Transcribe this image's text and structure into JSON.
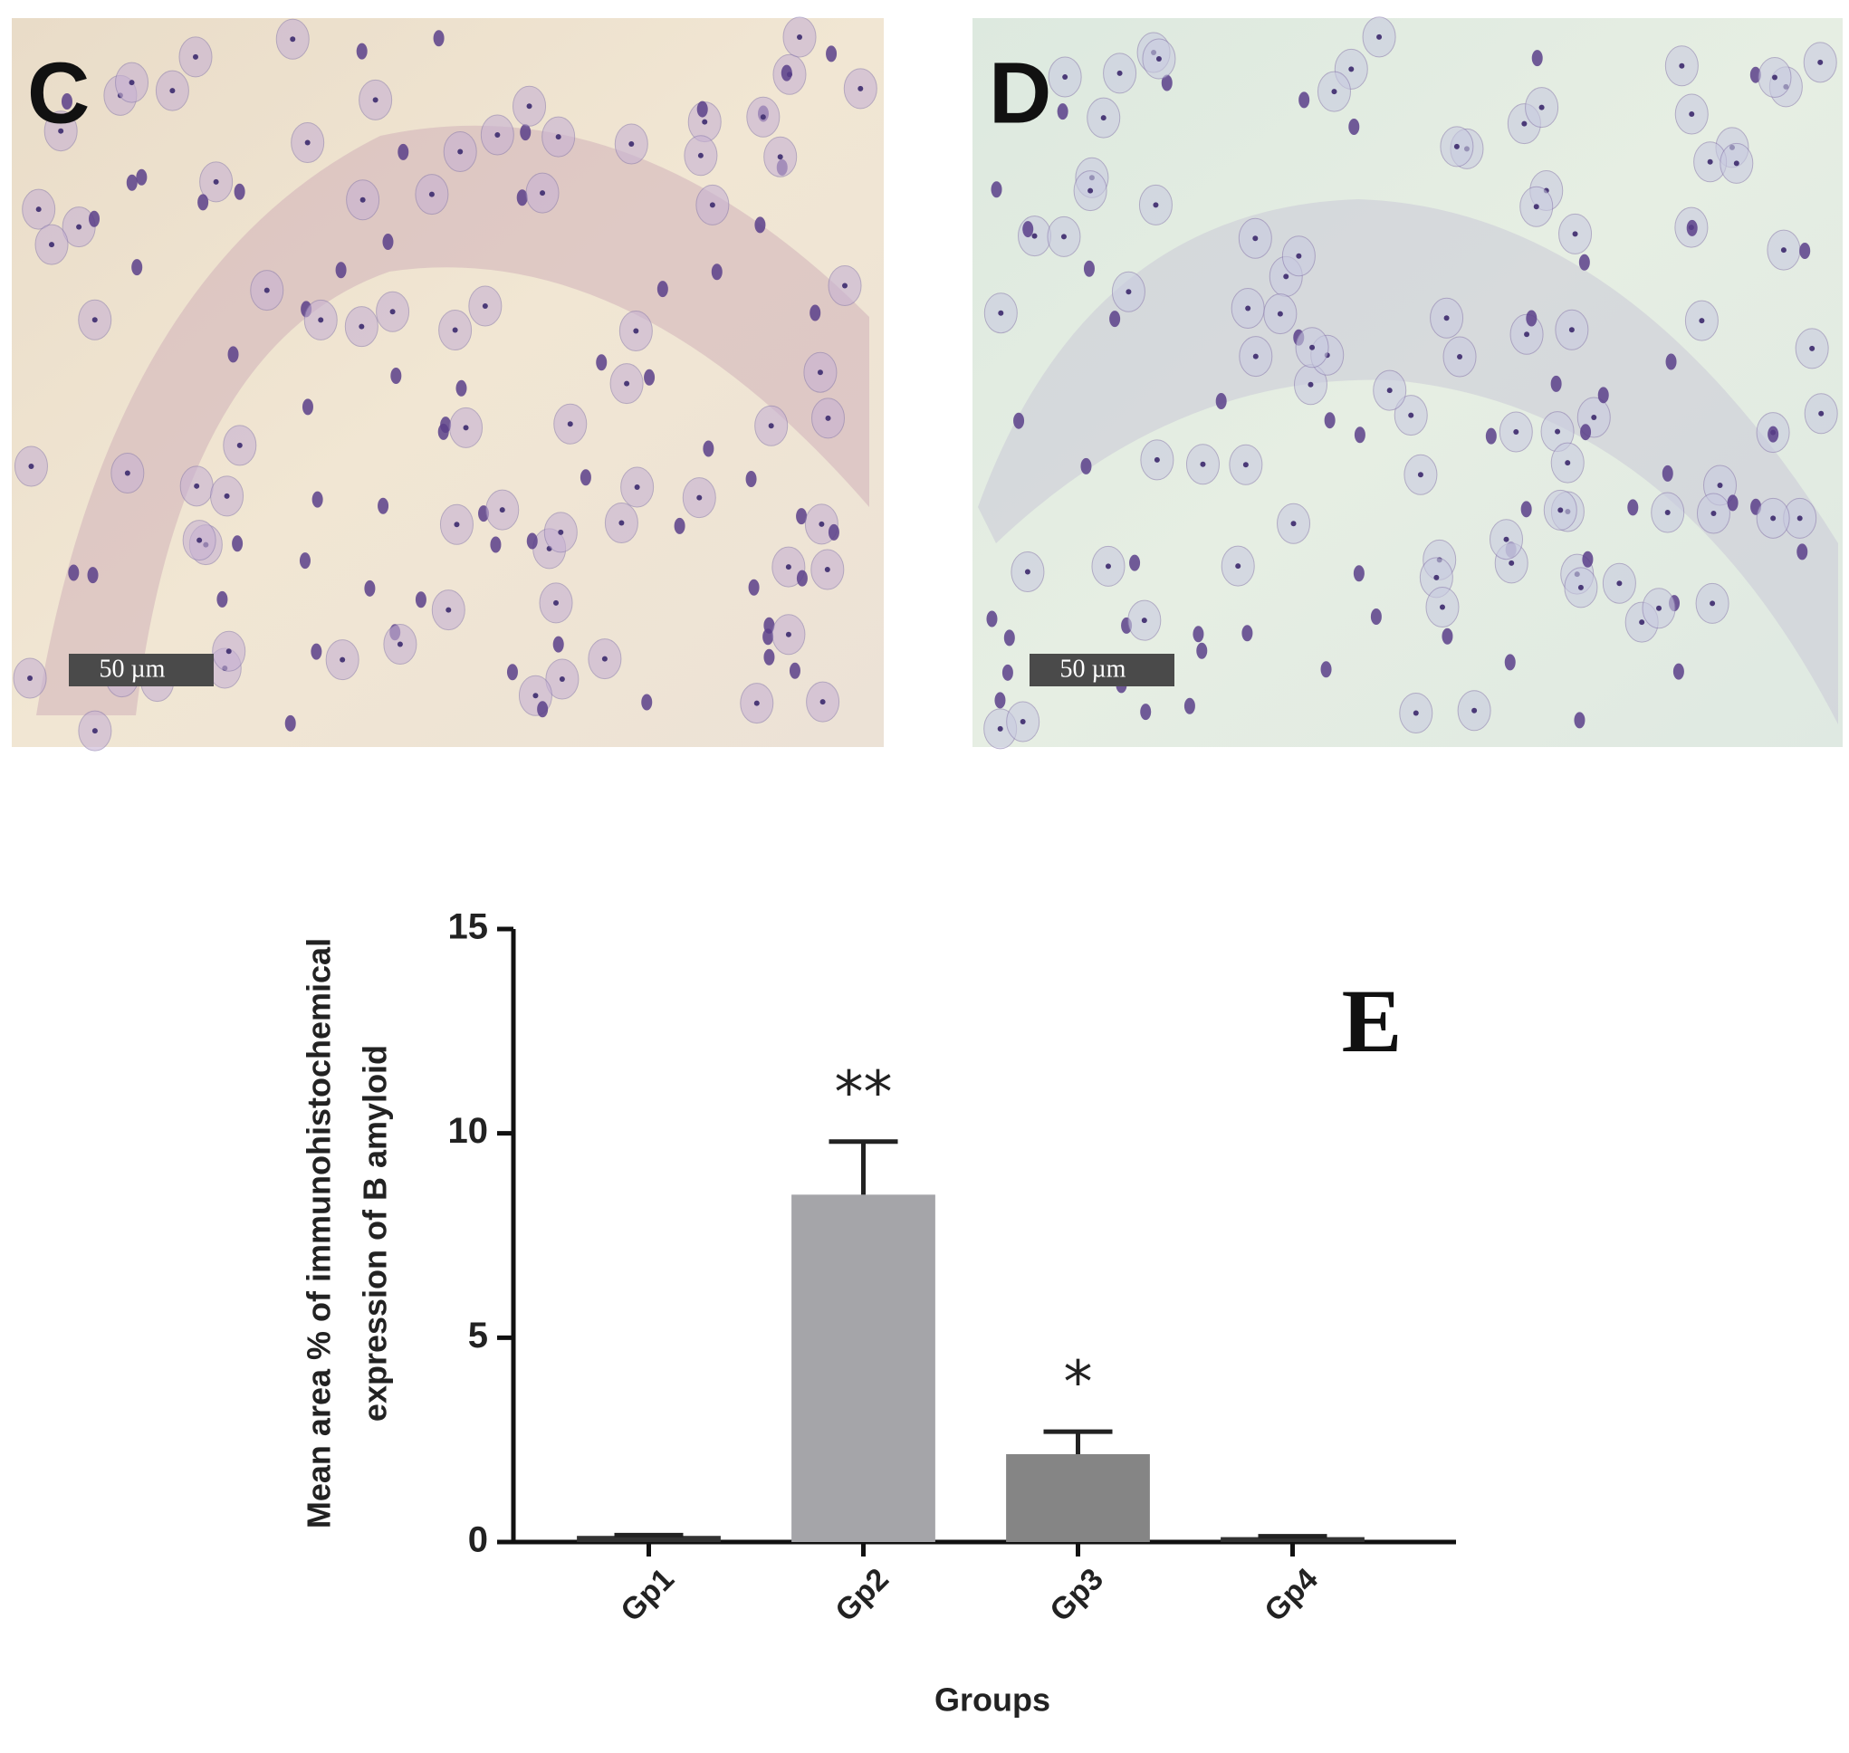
{
  "panels": [
    {
      "label": "C",
      "scale_bar": "50 µm"
    },
    {
      "label": "D",
      "scale_bar": "50 µm"
    }
  ],
  "chart_data": {
    "type": "bar",
    "panel_label": "E",
    "y_label": [
      "Mean area % of immunohistochemical",
      "expression of B amyloid"
    ],
    "x_label": "Groups",
    "categories": [
      "Gp1",
      "Gp2",
      "Gp3",
      "Gp4"
    ],
    "values": [
      0.15,
      8.5,
      2.15,
      0.12
    ],
    "errors": [
      0.02,
      1.3,
      0.55,
      0.02
    ],
    "colors": [
      "#333333",
      "#a5a5a9",
      "#858585",
      "#333333"
    ],
    "annotations": [
      null,
      "**",
      "*",
      null
    ],
    "ylim": [
      0,
      15
    ],
    "yticks": [
      0,
      5,
      10,
      15
    ]
  }
}
